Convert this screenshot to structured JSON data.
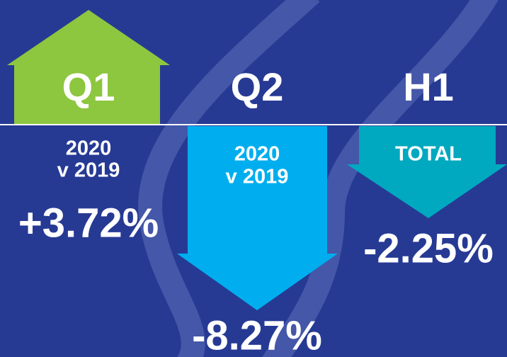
{
  "panels": [
    {
      "label": "Q1",
      "lines": [
        "2020",
        "v 2019"
      ],
      "value": "+3.72%"
    },
    {
      "label": "Q2",
      "lines": [
        "2020",
        "v 2019"
      ],
      "value": "-8.27%"
    },
    {
      "label": "H1",
      "lines": [
        "TOTAL"
      ],
      "value": "-2.25%"
    }
  ]
}
